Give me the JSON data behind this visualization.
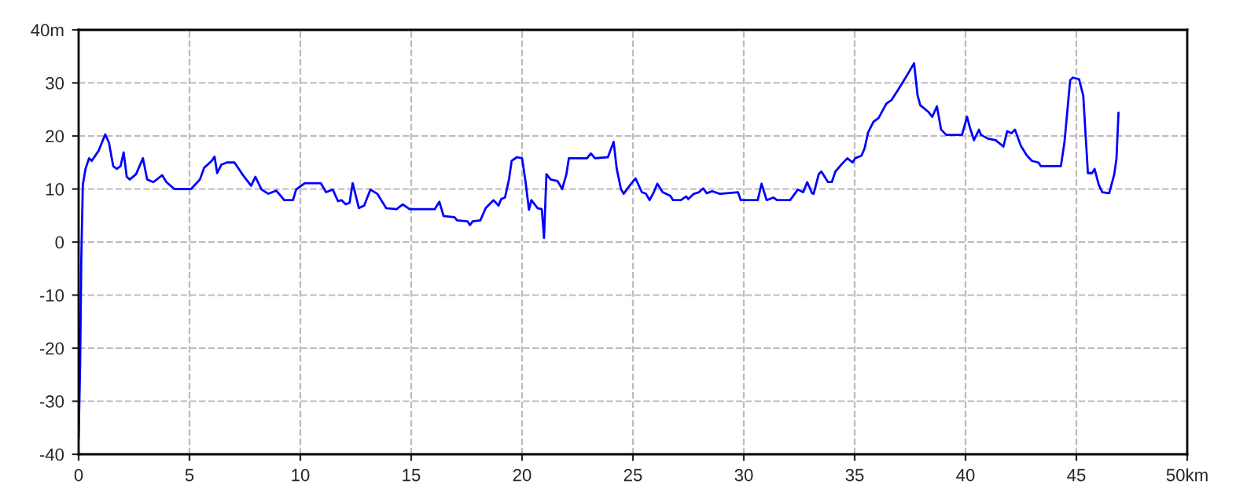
{
  "chart_data": {
    "type": "line",
    "xlim": [
      0,
      50
    ],
    "ylim": [
      -40,
      40
    ],
    "xticks": [
      0,
      5,
      10,
      15,
      20,
      25,
      30,
      35,
      40,
      45,
      {
        "value": 50,
        "label": "50km"
      }
    ],
    "yticks": [
      -40,
      -30,
      -20,
      -10,
      0,
      10,
      20,
      30,
      {
        "value": 40,
        "label": "40m"
      }
    ],
    "grid": true,
    "line_style": "solid",
    "marker": "none",
    "series": [
      {
        "color": "#0000ff",
        "x": [
          0,
          0.07,
          0.12,
          0.19,
          0.31,
          0.47,
          0.59,
          0.9,
          1.2,
          1.37,
          1.56,
          1.72,
          1.89,
          2.03,
          2.17,
          2.31,
          2.59,
          2.9,
          3.09,
          3.37,
          3.77,
          3.96,
          4.32,
          5.07,
          5.47,
          5.66,
          6.0,
          6.13,
          6.25,
          6.44,
          6.68,
          7.03,
          7.38,
          7.78,
          7.97,
          8.25,
          8.56,
          8.92,
          9.27,
          9.67,
          9.81,
          10.2,
          10.92,
          11.16,
          11.46,
          11.7,
          11.86,
          12.05,
          12.22,
          12.36,
          12.64,
          12.88,
          13.16,
          13.47,
          13.87,
          14.34,
          14.62,
          14.93,
          16.06,
          16.27,
          16.46,
          16.95,
          17.07,
          17.54,
          17.65,
          17.77,
          18.12,
          18.36,
          18.71,
          18.94,
          19.06,
          19.23,
          19.41,
          19.53,
          19.77,
          20.0,
          20.16,
          20.31,
          20.42,
          20.7,
          20.89,
          20.99,
          21.1,
          21.29,
          21.6,
          21.81,
          22.0,
          22.11,
          22.93,
          23.1,
          23.29,
          23.87,
          24.13,
          24.27,
          24.46,
          24.58,
          24.88,
          25.12,
          25.4,
          25.59,
          25.75,
          25.94,
          26.1,
          26.34,
          26.69,
          26.81,
          27.16,
          27.4,
          27.5,
          27.75,
          27.98,
          28.17,
          28.33,
          28.57,
          28.92,
          29.74,
          29.86,
          30.63,
          30.8,
          31.03,
          31.34,
          31.5,
          32.09,
          32.44,
          32.68,
          32.86,
          33.08,
          33.15,
          33.38,
          33.5,
          33.8,
          33.97,
          34.13,
          34.44,
          34.67,
          34.91,
          35.02,
          35.31,
          35.45,
          35.61,
          35.85,
          36.08,
          36.43,
          36.67,
          37.02,
          37.37,
          37.68,
          37.84,
          37.96,
          38.31,
          38.5,
          38.71,
          38.9,
          39.13,
          39.84,
          40.07,
          40.19,
          40.38,
          40.61,
          40.7,
          41.01,
          41.36,
          41.71,
          41.88,
          42.07,
          42.23,
          42.49,
          42.77,
          43.0,
          43.29,
          43.4,
          44.3,
          44.46,
          44.72,
          44.84,
          45.12,
          45.31,
          45.52,
          45.71,
          45.82,
          46.01,
          46.17,
          46.48,
          46.71,
          46.81,
          46.9
        ],
        "values": [
          -37,
          -22.7,
          -3.4,
          10.8,
          13.8,
          15.8,
          15.3,
          17.2,
          20.3,
          18.7,
          14.3,
          13.8,
          14.3,
          16.9,
          12.3,
          11.8,
          12.8,
          15.8,
          11.8,
          11.3,
          12.6,
          11.3,
          10,
          10,
          11.8,
          14,
          15.3,
          16.1,
          13,
          14.6,
          15,
          15,
          12.8,
          10.6,
          12.3,
          9.9,
          9.1,
          9.7,
          7.9,
          7.9,
          9.9,
          11.1,
          11.1,
          9.4,
          9.9,
          7.7,
          7.9,
          7.1,
          7.4,
          11.1,
          6.4,
          6.9,
          9.9,
          9.1,
          6.4,
          6.2,
          7.1,
          6.2,
          6.2,
          7.6,
          4.9,
          4.7,
          4.1,
          3.9,
          3.2,
          3.9,
          4.1,
          6.4,
          7.9,
          6.9,
          8.1,
          8.4,
          11.8,
          15.3,
          16,
          15.8,
          11.3,
          6.1,
          7.9,
          6.4,
          6.2,
          0.8,
          12.8,
          11.8,
          11.5,
          10,
          12.8,
          15.8,
          15.8,
          16.7,
          15.8,
          16,
          18.9,
          13.8,
          10,
          9.1,
          10.8,
          12,
          9.4,
          9.1,
          7.9,
          9.4,
          11,
          9.4,
          8.7,
          7.9,
          7.9,
          8.6,
          8.1,
          9.1,
          9.4,
          10.1,
          9.2,
          9.6,
          9.1,
          9.4,
          7.9,
          7.9,
          11,
          7.9,
          8.4,
          7.9,
          7.9,
          9.9,
          9.4,
          11.3,
          9.2,
          9.1,
          12.8,
          13.3,
          11.3,
          11.3,
          13.3,
          14.8,
          15.8,
          15,
          15.8,
          16.3,
          17.7,
          20.7,
          22.7,
          23.4,
          26.1,
          26.8,
          29.1,
          31.5,
          33.7,
          27.6,
          25.8,
          24.6,
          23.6,
          25.6,
          21.2,
          20.2,
          20.2,
          23.6,
          21.7,
          19.2,
          21.2,
          20.2,
          19.5,
          19.2,
          18,
          20.9,
          20.5,
          21.2,
          18.2,
          16.3,
          15.3,
          15,
          14.3,
          14.3,
          18.7,
          30.5,
          31,
          30.7,
          27.6,
          13,
          13,
          13.8,
          10.8,
          9.4,
          9.2,
          12.8,
          15.8,
          24.4
        ]
      }
    ]
  }
}
